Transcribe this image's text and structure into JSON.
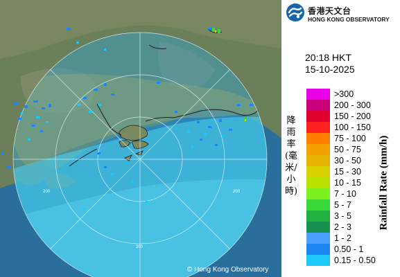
{
  "logo": {
    "name_cn": "香港天文台",
    "name_en": "HONG KONG OBSERVATORY"
  },
  "timestamp": {
    "time": "20:18 HKT",
    "date": "15-10-2025"
  },
  "legend": {
    "title_cn": "降雨率(毫米/小時)",
    "title_en": "Rainfall Rate (mm/h)",
    "items": [
      {
        "label": ">300",
        "color": "#e800e8"
      },
      {
        "label": "200 - 300",
        "color": "#c8007a"
      },
      {
        "label": "150 - 200",
        "color": "#e00030"
      },
      {
        "label": "100 - 150",
        "color": "#ff2020"
      },
      {
        "label": "75 - 100",
        "color": "#ff7f00"
      },
      {
        "label": "50 - 75",
        "color": "#f4a000"
      },
      {
        "label": "30 - 50",
        "color": "#e6b400"
      },
      {
        "label": "15 - 30",
        "color": "#d8d000"
      },
      {
        "label": "10 - 15",
        "color": "#b8e000"
      },
      {
        "label": "7 - 10",
        "color": "#7cf020"
      },
      {
        "label": "5 - 7",
        "color": "#38d838"
      },
      {
        "label": "3 - 5",
        "color": "#20b040"
      },
      {
        "label": "2 - 3",
        "color": "#189050"
      },
      {
        "label": "1 - 2",
        "color": "#4aa0ff"
      },
      {
        "label": "0.50 - 1",
        "color": "#1e86f0"
      },
      {
        "label": "0.15 - 0.50",
        "color": "#1ec8f8"
      }
    ]
  },
  "map": {
    "range_label": "200",
    "copyright": "© Hong Kong Observatory"
  }
}
